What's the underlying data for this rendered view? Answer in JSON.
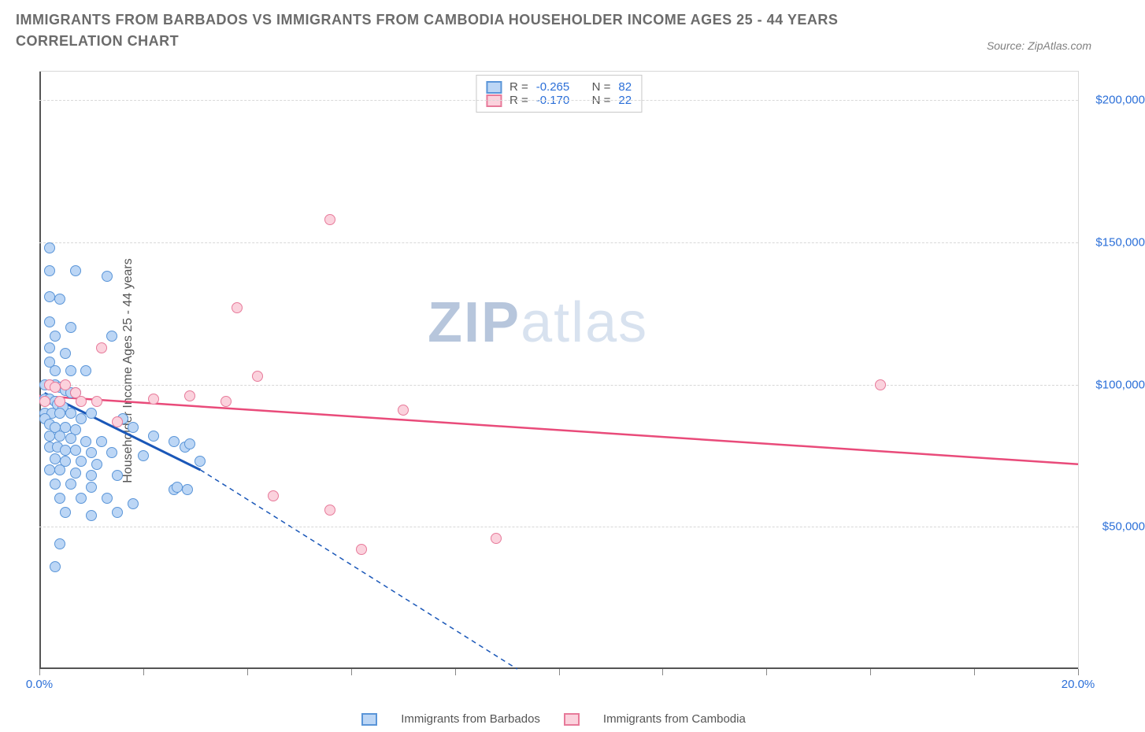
{
  "title": "IMMIGRANTS FROM BARBADOS VS IMMIGRANTS FROM CAMBODIA HOUSEHOLDER INCOME AGES 25 - 44 YEARS CORRELATION CHART",
  "source": "Source: ZipAtlas.com",
  "watermark": {
    "bold": "ZIP",
    "light": "atlas"
  },
  "chart": {
    "type": "scatter",
    "xlim": [
      0,
      20
    ],
    "ylim": [
      0,
      210000
    ],
    "x_unit": "%",
    "y_unit": "$",
    "xlabel": "",
    "ylabel": "Householder Income Ages 25 - 44 years",
    "yticks": [
      50000,
      100000,
      150000,
      200000
    ],
    "ytick_labels": [
      "$50,000",
      "$100,000",
      "$150,000",
      "$200,000"
    ],
    "xtick_positions": [
      0,
      2,
      4,
      6,
      8,
      10,
      12,
      14,
      16,
      18,
      20
    ],
    "xtick_labels": {
      "0": "0.0%",
      "20": "20.0%"
    },
    "background_color": "#ffffff",
    "grid_color": "#d8d8d8",
    "axis_color": "#555555",
    "tick_label_color": "#2b6fd8",
    "marker_size": 14,
    "series": [
      {
        "name": "Immigrants from Barbados",
        "fill": "#bcd6f5",
        "stroke": "#5a95d8",
        "R": -0.265,
        "N": 82,
        "regression": {
          "x1": 0.1,
          "y1": 97000,
          "x2": 3.1,
          "y2": 70000,
          "dash_x2": 9.2,
          "dash_y2": 0,
          "color": "#1a57b8",
          "width": 3,
          "dash": "6,5"
        },
        "points": [
          [
            0.2,
            148000
          ],
          [
            0.2,
            140000
          ],
          [
            0.7,
            140000
          ],
          [
            1.3,
            138000
          ],
          [
            0.2,
            131000
          ],
          [
            0.4,
            130000
          ],
          [
            0.2,
            122000
          ],
          [
            0.6,
            120000
          ],
          [
            0.3,
            117000
          ],
          [
            1.4,
            117000
          ],
          [
            0.2,
            113000
          ],
          [
            0.5,
            111000
          ],
          [
            0.2,
            108000
          ],
          [
            0.3,
            105000
          ],
          [
            0.6,
            105000
          ],
          [
            0.9,
            105000
          ],
          [
            0.1,
            100000
          ],
          [
            0.2,
            100000
          ],
          [
            0.3,
            100000
          ],
          [
            0.4,
            99000
          ],
          [
            0.5,
            98000
          ],
          [
            0.6,
            97000
          ],
          [
            0.7,
            97000
          ],
          [
            0.1,
            95000
          ],
          [
            0.2,
            95000
          ],
          [
            0.3,
            94000
          ],
          [
            0.35,
            93000
          ],
          [
            0.45,
            92000
          ],
          [
            0.1,
            90000
          ],
          [
            0.25,
            90000
          ],
          [
            0.4,
            90000
          ],
          [
            0.6,
            90000
          ],
          [
            0.8,
            88000
          ],
          [
            1.0,
            90000
          ],
          [
            1.6,
            88000
          ],
          [
            1.8,
            85000
          ],
          [
            0.1,
            88000
          ],
          [
            0.2,
            86000
          ],
          [
            0.3,
            85000
          ],
          [
            0.5,
            85000
          ],
          [
            0.7,
            84000
          ],
          [
            0.2,
            82000
          ],
          [
            0.4,
            82000
          ],
          [
            0.6,
            81000
          ],
          [
            0.9,
            80000
          ],
          [
            1.2,
            80000
          ],
          [
            2.2,
            82000
          ],
          [
            2.6,
            80000
          ],
          [
            0.2,
            78000
          ],
          [
            0.35,
            78000
          ],
          [
            0.5,
            77000
          ],
          [
            0.7,
            77000
          ],
          [
            1.0,
            76000
          ],
          [
            1.4,
            76000
          ],
          [
            2.0,
            75000
          ],
          [
            2.8,
            78000
          ],
          [
            2.9,
            79000
          ],
          [
            3.1,
            73000
          ],
          [
            0.3,
            74000
          ],
          [
            0.5,
            73000
          ],
          [
            0.8,
            73000
          ],
          [
            1.1,
            72000
          ],
          [
            0.2,
            70000
          ],
          [
            0.4,
            70000
          ],
          [
            0.7,
            69000
          ],
          [
            1.0,
            68000
          ],
          [
            1.5,
            68000
          ],
          [
            0.3,
            65000
          ],
          [
            0.6,
            65000
          ],
          [
            1.0,
            64000
          ],
          [
            2.6,
            63000
          ],
          [
            2.65,
            64000
          ],
          [
            2.85,
            63000
          ],
          [
            0.4,
            60000
          ],
          [
            0.8,
            60000
          ],
          [
            1.3,
            60000
          ],
          [
            1.8,
            58000
          ],
          [
            0.5,
            55000
          ],
          [
            1.0,
            54000
          ],
          [
            1.5,
            55000
          ],
          [
            0.4,
            44000
          ],
          [
            0.3,
            36000
          ]
        ]
      },
      {
        "name": "Immigrants from Cambodia",
        "fill": "#fbd2dd",
        "stroke": "#e77a9a",
        "R": -0.17,
        "N": 22,
        "regression": {
          "x1": 0.0,
          "y1": 96000,
          "x2": 20.0,
          "y2": 72000,
          "color": "#e94b7a",
          "width": 2.5
        },
        "points": [
          [
            5.6,
            158000
          ],
          [
            3.8,
            127000
          ],
          [
            1.2,
            113000
          ],
          [
            0.2,
            100000
          ],
          [
            0.3,
            99000
          ],
          [
            0.5,
            100000
          ],
          [
            0.7,
            97000
          ],
          [
            4.2,
            103000
          ],
          [
            16.2,
            100000
          ],
          [
            0.1,
            94000
          ],
          [
            0.4,
            94000
          ],
          [
            0.8,
            94000
          ],
          [
            1.1,
            94000
          ],
          [
            2.2,
            95000
          ],
          [
            2.9,
            96000
          ],
          [
            3.6,
            94000
          ],
          [
            7.0,
            91000
          ],
          [
            1.5,
            87000
          ],
          [
            4.5,
            61000
          ],
          [
            5.6,
            56000
          ],
          [
            6.2,
            42000
          ],
          [
            8.8,
            46000
          ]
        ]
      }
    ]
  },
  "footer_legend": [
    "Immigrants from Barbados",
    "Immigrants from Cambodia"
  ]
}
